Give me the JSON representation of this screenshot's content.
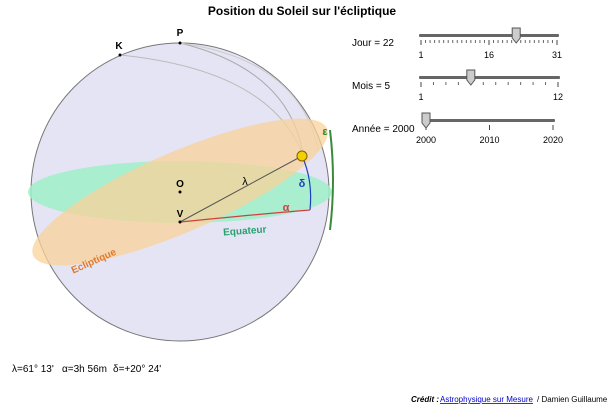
{
  "header": {
    "title": "Position du Soleil sur l'écliptique"
  },
  "diagram": {
    "labels": {
      "K": "K",
      "P": "P",
      "O": "O",
      "V": "V",
      "lambda": "λ",
      "delta": "δ",
      "alpha": "α",
      "epsilon": "ε",
      "equator": "Equateur",
      "ecliptic": "Ecliptique"
    }
  },
  "sliders": [
    {
      "label": "Jour = 22",
      "value": 22,
      "range": [
        1,
        31
      ],
      "ticks": [
        1,
        16,
        31
      ]
    },
    {
      "label": "Mois = 5",
      "value": 5,
      "range": [
        1,
        12
      ],
      "ticks": [
        1,
        12
      ]
    },
    {
      "label": "Année = 2000",
      "value": 2000,
      "range": [
        2000,
        2020
      ],
      "ticks": [
        2000,
        2010,
        2020
      ]
    }
  ],
  "readout": [
    "λ=61° 13'",
    "α=3h 56m",
    "δ=+20° 24'"
  ],
  "credit": {
    "prefix": "Crédit :",
    "link": "Astrophysique sur Mesure",
    "suffix": "/ Damien Guillaume"
  }
}
